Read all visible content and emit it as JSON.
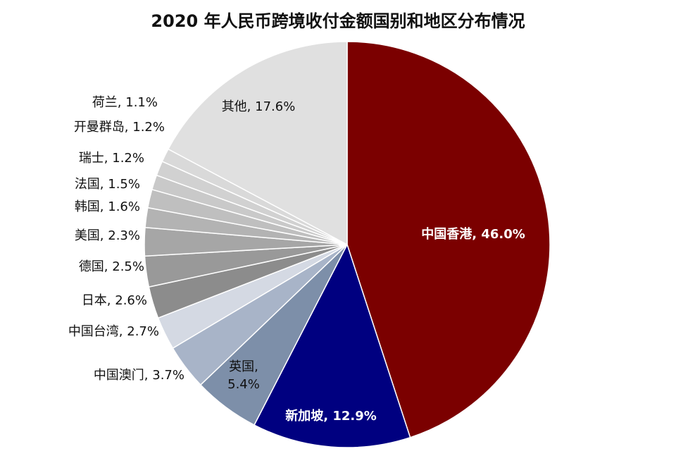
{
  "chart_data": {
    "type": "pie",
    "title": "2020 年人民币跨境收付金额国别和地区分布情况",
    "slices": [
      {
        "label": "中国香港",
        "value": 46.0,
        "text": "中国香港, 46.0%",
        "color": "#7b0000",
        "text_color": "#ffffff"
      },
      {
        "label": "新加坡",
        "value": 12.9,
        "text": "新加坡, 12.9%",
        "color": "#000080",
        "text_color": "#ffffff"
      },
      {
        "label": "英国",
        "value": 5.4,
        "text": "英国,\n5.4%",
        "color": "#7d8fa9",
        "text_color": "#111111"
      },
      {
        "label": "中国澳门",
        "value": 3.7,
        "text": "中国澳门, 3.7%",
        "color": "#a8b4c8",
        "text_color": "#111111"
      },
      {
        "label": "中国台湾",
        "value": 2.7,
        "text": "中国台湾, 2.7%",
        "color": "#d4d9e3",
        "text_color": "#111111"
      },
      {
        "label": "日本",
        "value": 2.6,
        "text": "日本, 2.6%",
        "color": "#8c8c8c",
        "text_color": "#111111"
      },
      {
        "label": "德国",
        "value": 2.5,
        "text": "德国, 2.5%",
        "color": "#999999",
        "text_color": "#111111"
      },
      {
        "label": "美国",
        "value": 2.3,
        "text": "美国, 2.3%",
        "color": "#a6a6a6",
        "text_color": "#111111"
      },
      {
        "label": "韩国",
        "value": 1.6,
        "text": "韩国, 1.6%",
        "color": "#b3b3b3",
        "text_color": "#111111"
      },
      {
        "label": "法国",
        "value": 1.5,
        "text": "法国, 1.5%",
        "color": "#bfbfbf",
        "text_color": "#111111"
      },
      {
        "label": "瑞士",
        "value": 1.2,
        "text": "瑞士, 1.2%",
        "color": "#c9c9c9",
        "text_color": "#111111"
      },
      {
        "label": "开曼群岛",
        "value": 1.2,
        "text": "开曼群岛, 1.2%",
        "color": "#d1d1d1",
        "text_color": "#111111"
      },
      {
        "label": "荷兰",
        "value": 1.1,
        "text": "荷兰, 1.1%",
        "color": "#d9d9d9",
        "text_color": "#111111"
      },
      {
        "label": "其他",
        "value": 17.6,
        "text": "其他, 17.6%",
        "color": "#e0e0e0",
        "text_color": "#111111"
      }
    ]
  }
}
